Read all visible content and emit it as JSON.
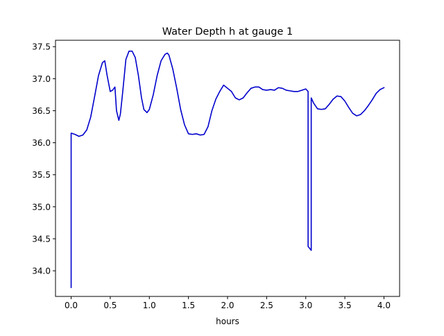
{
  "chart_data": {
    "type": "line",
    "title": "Water Depth h at gauge 1",
    "xlabel": "hours",
    "ylabel": "",
    "xlim": [
      -0.2,
      4.2
    ],
    "ylim": [
      33.6,
      37.6
    ],
    "xticks": [
      0.0,
      0.5,
      1.0,
      1.5,
      2.0,
      2.5,
      3.0,
      3.5,
      4.0
    ],
    "xtick_labels": [
      "0.0",
      "0.5",
      "1.0",
      "1.5",
      "2.0",
      "2.5",
      "3.0",
      "3.5",
      "4.0"
    ],
    "yticks": [
      34.0,
      34.5,
      35.0,
      35.5,
      36.0,
      36.5,
      37.0,
      37.5
    ],
    "ytick_labels": [
      "34.0",
      "34.5",
      "35.0",
      "35.5",
      "36.0",
      "36.5",
      "37.0",
      "37.5"
    ],
    "grid": false,
    "legend": "none",
    "line_color": "#0000cc",
    "series": [
      {
        "x": [
          0.0,
          0.0,
          0.05,
          0.1,
          0.15,
          0.2,
          0.25,
          0.3,
          0.35,
          0.4,
          0.43,
          0.46,
          0.5,
          0.53,
          0.56,
          0.58,
          0.61,
          0.63,
          0.66,
          0.7,
          0.74,
          0.78,
          0.82,
          0.86,
          0.9,
          0.93,
          0.97,
          1.0,
          1.05,
          1.1,
          1.15,
          1.2,
          1.23,
          1.25,
          1.3,
          1.35,
          1.4,
          1.45,
          1.5,
          1.55,
          1.6,
          1.65,
          1.7,
          1.75,
          1.8,
          1.85,
          1.9,
          1.95,
          2.0,
          2.05,
          2.1,
          2.15,
          2.2,
          2.25,
          2.3,
          2.35,
          2.4,
          2.45,
          2.5,
          2.55,
          2.6,
          2.65,
          2.7,
          2.75,
          2.8,
          2.85,
          2.9,
          2.95,
          3.0,
          3.03,
          3.03,
          3.07,
          3.07,
          3.1,
          3.15,
          3.2,
          3.25,
          3.3,
          3.35,
          3.4,
          3.45,
          3.5,
          3.55,
          3.6,
          3.65,
          3.7,
          3.75,
          3.8,
          3.85,
          3.9,
          3.95,
          4.0
        ],
        "y": [
          33.74,
          36.15,
          36.13,
          36.1,
          36.12,
          36.2,
          36.4,
          36.72,
          37.05,
          37.25,
          37.28,
          37.05,
          36.8,
          36.82,
          36.87,
          36.5,
          36.35,
          36.45,
          36.8,
          37.3,
          37.43,
          37.43,
          37.33,
          37.05,
          36.7,
          36.52,
          36.47,
          36.52,
          36.75,
          37.05,
          37.28,
          37.38,
          37.4,
          37.37,
          37.15,
          36.85,
          36.52,
          36.28,
          36.14,
          36.13,
          36.14,
          36.12,
          36.13,
          36.25,
          36.5,
          36.68,
          36.8,
          36.9,
          36.85,
          36.8,
          36.7,
          36.67,
          36.7,
          36.78,
          36.85,
          36.87,
          36.87,
          36.83,
          36.82,
          36.83,
          36.82,
          36.86,
          36.85,
          36.82,
          36.81,
          36.8,
          36.8,
          36.82,
          36.84,
          36.8,
          34.38,
          34.32,
          36.7,
          36.62,
          36.53,
          36.52,
          36.53,
          36.6,
          36.68,
          36.73,
          36.72,
          36.65,
          36.55,
          36.46,
          36.42,
          36.44,
          36.5,
          36.58,
          36.67,
          36.77,
          36.83,
          36.86
        ]
      }
    ]
  }
}
